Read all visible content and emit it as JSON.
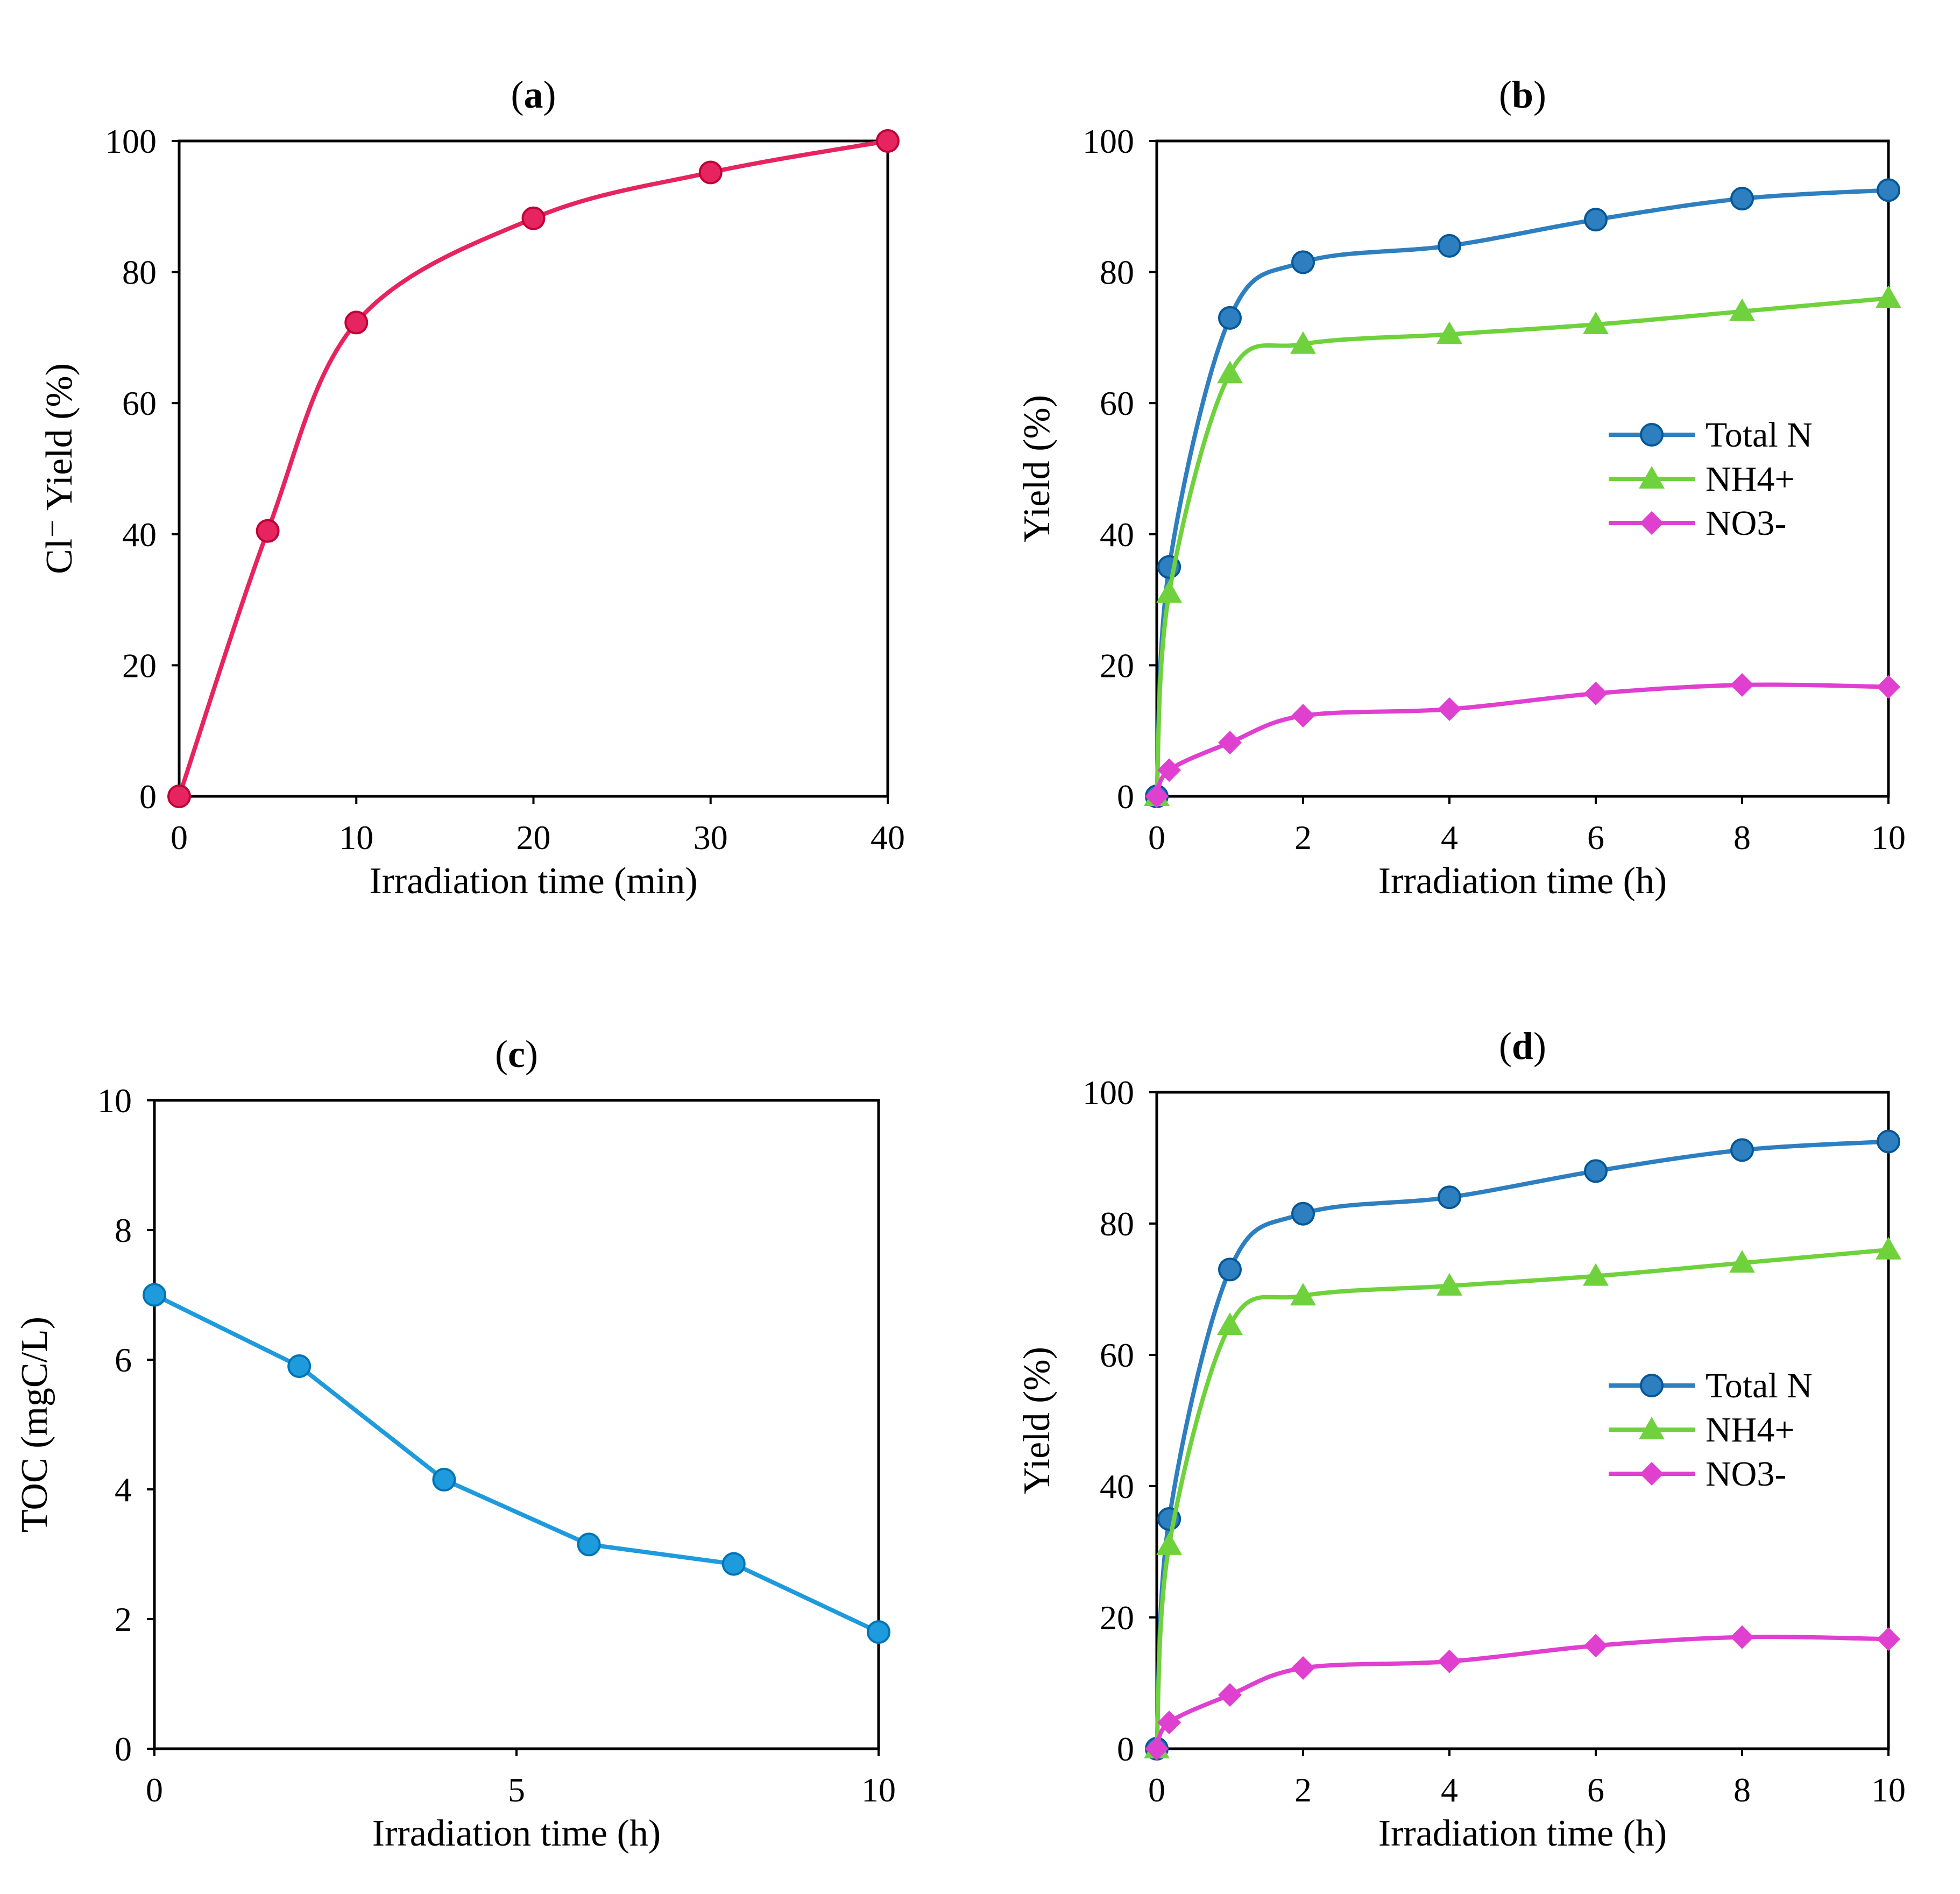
{
  "chart_data": [
    {
      "panel": "a",
      "type": "line",
      "title": "(a)",
      "title_bold": "a",
      "xlabel": "Irradiation time (min)",
      "ylabel": "Cl⁻ Yield (%)",
      "xlim": [
        0,
        40
      ],
      "ylim": [
        0,
        100
      ],
      "xticks": [
        0,
        10,
        20,
        30,
        40
      ],
      "yticks": [
        0,
        20,
        40,
        60,
        80,
        100
      ],
      "smooth": true,
      "grid": false,
      "series": [
        {
          "color": "#e6245f",
          "marker": "circle",
          "x": [
            0,
            5,
            10,
            20,
            30,
            40
          ],
          "y": [
            0,
            40.5,
            72.3,
            88.2,
            95.2,
            100
          ]
        }
      ]
    },
    {
      "panel": "b",
      "type": "line",
      "title": "(b)",
      "title_bold": "b",
      "xlabel": "Irradiation time (h)",
      "ylabel": "Yield (%)",
      "xlim": [
        0,
        10
      ],
      "ylim": [
        0,
        100
      ],
      "xticks": [
        0,
        2,
        4,
        6,
        8,
        10
      ],
      "yticks": [
        0,
        20,
        40,
        60,
        80,
        100
      ],
      "smooth": true,
      "grid": false,
      "legend_position": "right",
      "series": [
        {
          "name": "Total N",
          "color": "#2e7fc0",
          "marker": "circle",
          "x": [
            0,
            0.17,
            1,
            2,
            4,
            6,
            8,
            10
          ],
          "y": [
            0,
            35,
            73,
            81.5,
            84,
            88,
            91.2,
            92.5
          ]
        },
        {
          "name": "NH4+",
          "color": "#6fd23c",
          "marker": "triangle",
          "x": [
            0,
            0.17,
            1,
            2,
            4,
            6,
            8,
            10
          ],
          "y": [
            0,
            31,
            64.5,
            69,
            70.5,
            72,
            74,
            76
          ]
        },
        {
          "name": "NO3-",
          "color": "#e040d0",
          "marker": "diamond",
          "x": [
            0,
            0.17,
            1,
            2,
            4,
            6,
            8,
            10
          ],
          "y": [
            0,
            4,
            8.2,
            12.3,
            13.3,
            15.7,
            17,
            16.7
          ]
        }
      ]
    },
    {
      "panel": "c",
      "type": "line",
      "title": "(c)",
      "title_bold": "c",
      "xlabel": "Irradiation time (h)",
      "ylabel": "TOC (mgC/L)",
      "xlim": [
        0,
        10
      ],
      "ylim": [
        0,
        10
      ],
      "xticks": [
        0,
        5,
        10
      ],
      "yticks": [
        0,
        2,
        4,
        6,
        8,
        10
      ],
      "smooth": false,
      "grid": false,
      "series": [
        {
          "color": "#1e9bdc",
          "marker": "circle",
          "x": [
            0,
            2,
            4,
            6,
            8,
            10
          ],
          "y": [
            7.0,
            5.9,
            4.15,
            3.15,
            2.85,
            1.8
          ]
        }
      ]
    },
    {
      "panel": "d",
      "type": "line",
      "title": "(d)",
      "title_bold": "d",
      "xlabel": "Irradiation time (h)",
      "ylabel": "Yield (%)",
      "xlim": [
        0,
        10
      ],
      "ylim": [
        0,
        100
      ],
      "xticks": [
        0,
        2,
        4,
        6,
        8,
        10
      ],
      "yticks": [
        0,
        20,
        40,
        60,
        80,
        100
      ],
      "smooth": true,
      "grid": false,
      "legend_position": "right",
      "series": [
        {
          "name": "Total N",
          "color": "#2e7fc0",
          "marker": "circle",
          "x": [
            0,
            0.17,
            1,
            2,
            4,
            6,
            8,
            10
          ],
          "y": [
            0,
            35,
            73,
            81.5,
            84,
            88,
            91.2,
            92.5
          ]
        },
        {
          "name": "NH4+",
          "color": "#6fd23c",
          "marker": "triangle",
          "x": [
            0,
            0.17,
            1,
            2,
            4,
            6,
            8,
            10
          ],
          "y": [
            0,
            31,
            64.5,
            69,
            70.5,
            72,
            74,
            76
          ]
        },
        {
          "name": "NO3-",
          "color": "#e040d0",
          "marker": "diamond",
          "x": [
            0,
            0.17,
            1,
            2,
            4,
            6,
            8,
            10
          ],
          "y": [
            0,
            4,
            8.2,
            12.3,
            13.3,
            15.7,
            17,
            16.7
          ]
        }
      ]
    }
  ]
}
